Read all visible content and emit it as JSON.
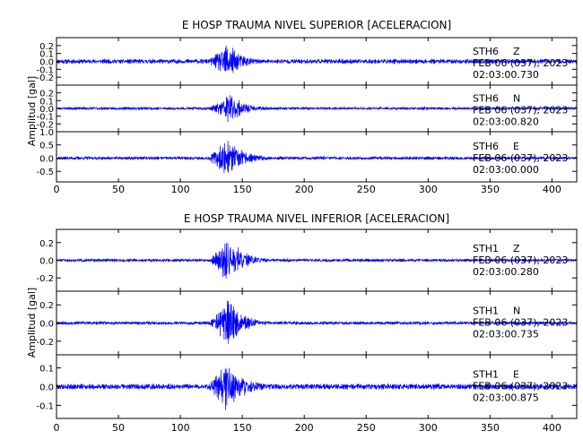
{
  "chart_data": [
    {
      "type": "line",
      "title": "E HOSP TRAUMA NIVEL SUPERIOR [ACELERACION]",
      "ylabel": "Amplitud [gal]",
      "xlim": [
        0,
        420
      ],
      "x_ticks": [
        0,
        50,
        100,
        150,
        200,
        250,
        300,
        350,
        400
      ],
      "panels": [
        {
          "name": "STH6 Z",
          "station": "STH6",
          "component": "Z",
          "date": "FEB 06 (037), 2023",
          "start_time": "02:03:00.730",
          "ylim": [
            -0.3,
            0.3
          ],
          "y_ticks": [
            "0.2",
            "0.1",
            "0.0",
            "-0.1",
            "-0.2"
          ],
          "noise_amp": 0.035,
          "event_amp": 0.27,
          "event_start": 120,
          "event_peak": 138,
          "event_end": 175,
          "seed": 11
        },
        {
          "name": "STH6 N",
          "station": "STH6",
          "component": "N",
          "date": "FEB 06 (037), 2023",
          "start_time": "02:03:00.820",
          "ylim": [
            -0.3,
            0.3
          ],
          "y_ticks": [
            "0.2",
            "0.1",
            "0.0",
            "-0.1",
            "-0.2"
          ],
          "noise_amp": 0.02,
          "event_amp": 0.25,
          "event_start": 122,
          "event_peak": 140,
          "event_end": 175,
          "seed": 23
        },
        {
          "name": "STH6 E",
          "station": "STH6",
          "component": "E",
          "date": "FEB 06 (037), 2023",
          "start_time": "02:03:00.000",
          "ylim": [
            -0.9,
            1.0
          ],
          "y_ticks": [
            "1.0",
            "0.5",
            "0.0",
            "-0.5"
          ],
          "noise_amp": 0.07,
          "event_amp": 0.85,
          "event_start": 120,
          "event_peak": 137,
          "event_end": 180,
          "seed": 37
        }
      ]
    },
    {
      "type": "line",
      "title": "E HOSP TRAUMA NIVEL INFERIOR [ACELERACION]",
      "ylabel": "Amplitud [gal]",
      "xlim": [
        0,
        420
      ],
      "x_ticks": [
        0,
        50,
        100,
        150,
        200,
        250,
        300,
        350,
        400
      ],
      "panels": [
        {
          "name": "STH1 Z",
          "station": "STH1",
          "component": "Z",
          "date": "FEB 06 (037), 2023",
          "start_time": "02:03:00.280",
          "ylim": [
            -0.35,
            0.35
          ],
          "y_ticks": [
            "0.2",
            "0.0",
            "-0.2"
          ],
          "noise_amp": 0.02,
          "event_amp": 0.32,
          "event_start": 122,
          "event_peak": 138,
          "event_end": 175,
          "seed": 51
        },
        {
          "name": "STH1 N",
          "station": "STH1",
          "component": "N",
          "date": "FEB 06 (037), 2023",
          "start_time": "02:03:00.735",
          "ylim": [
            -0.35,
            0.35
          ],
          "y_ticks": [
            "0.2",
            "0.0",
            "-0.2"
          ],
          "noise_amp": 0.02,
          "event_amp": 0.3,
          "event_start": 122,
          "event_peak": 138,
          "event_end": 175,
          "seed": 67
        },
        {
          "name": "STH1 E",
          "station": "STH1",
          "component": "E",
          "date": "FEB 06 (037), 2023",
          "start_time": "02:03:00.875",
          "ylim": [
            -0.17,
            0.17
          ],
          "y_ticks": [
            "0.1",
            "0.0",
            "-0.1"
          ],
          "noise_amp": 0.018,
          "event_amp": 0.16,
          "event_start": 120,
          "event_peak": 137,
          "event_end": 180,
          "seed": 79
        }
      ]
    }
  ]
}
